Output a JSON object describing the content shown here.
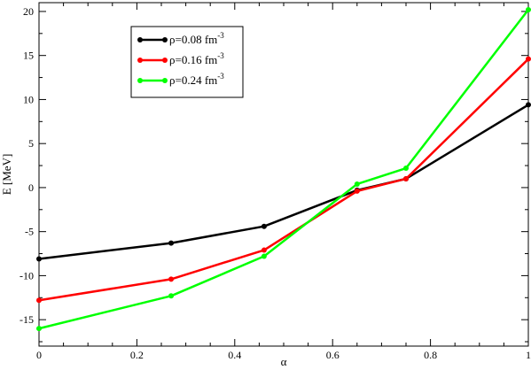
{
  "chart_data": {
    "type": "line",
    "xlabel": "α",
    "ylabel": "E [MeV]",
    "xlim": [
      0,
      1
    ],
    "ylim": [
      -18,
      21
    ],
    "x_ticks": [
      0,
      0.2,
      0.4,
      0.6,
      0.8,
      1
    ],
    "x_tick_labels": [
      "0",
      "0.2",
      "0.4",
      "0.6",
      "0.8",
      "1"
    ],
    "y_ticks": [
      -15,
      -10,
      -5,
      0,
      5,
      10,
      15,
      20
    ],
    "y_tick_labels": [
      "-15",
      "-10",
      "-5",
      "0",
      "5",
      "10",
      "15",
      "20"
    ],
    "grid": false,
    "legend_position": "top-left",
    "series": [
      {
        "name": "ρ=0.08 fm",
        "name_sup": "-3",
        "color": "#000000",
        "x": [
          0,
          0.27,
          0.46,
          0.65,
          0.75,
          1
        ],
        "y": [
          -8.1,
          -6.3,
          -4.4,
          -0.3,
          1.0,
          9.4
        ]
      },
      {
        "name": "ρ=0.16 fm",
        "name_sup": "-3",
        "color": "#ff0000",
        "x": [
          0,
          0.27,
          0.46,
          0.65,
          0.75,
          1
        ],
        "y": [
          -12.8,
          -10.4,
          -7.1,
          -0.4,
          1.0,
          14.6
        ]
      },
      {
        "name": "ρ=0.24 fm",
        "name_sup": "-3",
        "color": "#00ff00",
        "x": [
          0,
          0.27,
          0.46,
          0.65,
          0.75,
          1
        ],
        "y": [
          -16.0,
          -12.3,
          -7.8,
          0.4,
          2.2,
          20.2
        ]
      }
    ]
  }
}
